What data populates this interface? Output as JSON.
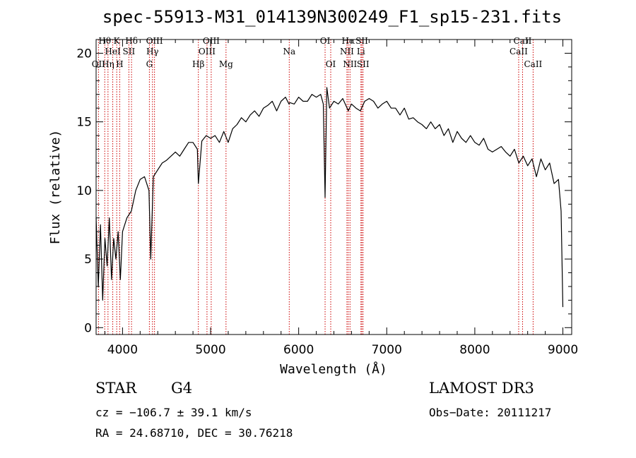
{
  "chart_data": {
    "type": "line",
    "title": "spec-55913-M31_014139N300249_F1_sp15-231.fits",
    "xlabel": "Wavelength (Å)",
    "ylabel": "Flux (relative)",
    "xlim": [
      3700,
      9100
    ],
    "ylim": [
      -0.5,
      21
    ],
    "xticks": [
      4000,
      5000,
      6000,
      7000,
      8000,
      9000
    ],
    "yticks": [
      0,
      5,
      10,
      15,
      20
    ],
    "series": [
      {
        "name": "spectrum",
        "x": [
          3700,
          3725,
          3750,
          3775,
          3800,
          3825,
          3850,
          3875,
          3900,
          3925,
          3950,
          3975,
          4000,
          4050,
          4100,
          4150,
          4200,
          4250,
          4300,
          4320,
          4350,
          4400,
          4450,
          4500,
          4550,
          4600,
          4650,
          4700,
          4750,
          4800,
          4850,
          4861,
          4900,
          4950,
          5000,
          5050,
          5100,
          5150,
          5200,
          5250,
          5300,
          5350,
          5400,
          5450,
          5500,
          5550,
          5600,
          5650,
          5700,
          5750,
          5800,
          5850,
          5890,
          5900,
          5950,
          6000,
          6050,
          6100,
          6150,
          6200,
          6250,
          6280,
          6300,
          6320,
          6350,
          6400,
          6450,
          6500,
          6550,
          6563,
          6600,
          6650,
          6700,
          6750,
          6800,
          6850,
          6900,
          6950,
          7000,
          7050,
          7100,
          7150,
          7200,
          7250,
          7300,
          7350,
          7400,
          7450,
          7500,
          7550,
          7600,
          7650,
          7700,
          7750,
          7800,
          7850,
          7900,
          7950,
          8000,
          8050,
          8100,
          8150,
          8200,
          8250,
          8300,
          8350,
          8400,
          8450,
          8500,
          8550,
          8600,
          8650,
          8700,
          8750,
          8800,
          8850,
          8900,
          8950,
          8980,
          9000
        ],
        "y": [
          8,
          3,
          7.5,
          2,
          6.5,
          4.5,
          8,
          3.5,
          6.5,
          5,
          7,
          3.5,
          7,
          8,
          8.5,
          10,
          10.8,
          11,
          10,
          5,
          11,
          11.5,
          12,
          12.2,
          12.5,
          12.8,
          12.5,
          13,
          13.5,
          13.5,
          13,
          10.5,
          13.6,
          14,
          13.8,
          14,
          13.5,
          14.3,
          13.5,
          14.5,
          14.8,
          15.3,
          15,
          15.5,
          15.8,
          15.4,
          16,
          16.2,
          16.5,
          15.8,
          16.5,
          16.8,
          16.3,
          16.4,
          16.3,
          16.8,
          16.5,
          16.5,
          17,
          16.8,
          17,
          16.3,
          9.5,
          17.5,
          16,
          16.5,
          16.3,
          16.7,
          16,
          15.8,
          16.3,
          16,
          15.8,
          16.5,
          16.7,
          16.5,
          16,
          16.3,
          16.5,
          16,
          16,
          15.5,
          16,
          15.2,
          15.3,
          15,
          14.8,
          14.5,
          15,
          14.5,
          14.8,
          14,
          14.5,
          13.5,
          14.3,
          13.8,
          13.5,
          14,
          13.5,
          13.3,
          13.8,
          13,
          12.8,
          13,
          13.2,
          12.8,
          12.5,
          13,
          12,
          12.5,
          11.8,
          12.3,
          11,
          12.3,
          11.5,
          12,
          10.5,
          10.8,
          8.5,
          1.5
        ]
      }
    ],
    "spectral_lines": [
      {
        "label": "OII",
        "x": 3727,
        "row": 3
      },
      {
        "label": "Hθ",
        "x": 3798,
        "row": 1
      },
      {
        "label": "Hη",
        "x": 3835,
        "row": 3
      },
      {
        "label": "HeI",
        "x": 3889,
        "row": 2
      },
      {
        "label": "K",
        "x": 3934,
        "row": 1
      },
      {
        "label": "H",
        "x": 3968,
        "row": 3
      },
      {
        "label": "SII",
        "x": 4072,
        "row": 2
      },
      {
        "label": "Hδ",
        "x": 4102,
        "row": 1
      },
      {
        "label": "G",
        "x": 4305,
        "row": 3
      },
      {
        "label": "Hγ",
        "x": 4340,
        "row": 2
      },
      {
        "label": "OIII",
        "x": 4363,
        "row": 1
      },
      {
        "label": "Hβ",
        "x": 4861,
        "row": 3
      },
      {
        "label": "OIII",
        "x": 4959,
        "row": 2
      },
      {
        "label": "OIII",
        "x": 5007,
        "row": 1
      },
      {
        "label": "Mg",
        "x": 5175,
        "row": 3
      },
      {
        "label": "Na",
        "x": 5893,
        "row": 2
      },
      {
        "label": "OI",
        "x": 6300,
        "row": 1
      },
      {
        "label": "OI",
        "x": 6364,
        "row": 3
      },
      {
        "label": "NII",
        "x": 6548,
        "row": 2
      },
      {
        "label": "Hα",
        "x": 6563,
        "row": 1
      },
      {
        "label": "NII",
        "x": 6583,
        "row": 3
      },
      {
        "label": "Li",
        "x": 6707,
        "row": 2
      },
      {
        "label": "SII",
        "x": 6717,
        "row": 1
      },
      {
        "label": "SII",
        "x": 6731,
        "row": 3
      },
      {
        "label": "CaII",
        "x": 8498,
        "row": 2
      },
      {
        "label": "CaII",
        "x": 8542,
        "row": 1
      },
      {
        "label": "CaII",
        "x": 8662,
        "row": 3
      }
    ],
    "line_color": "#000000",
    "marker_color": "#cc0000"
  },
  "info": {
    "class_label": "STAR",
    "subclass": "G4",
    "survey": "LAMOST DR3",
    "cz": "cz = −106.7 ± 39.1 km/s",
    "obs_date": "Obs−Date: 20111217",
    "coords": "RA =  24.68710, DEC =  30.76218"
  }
}
